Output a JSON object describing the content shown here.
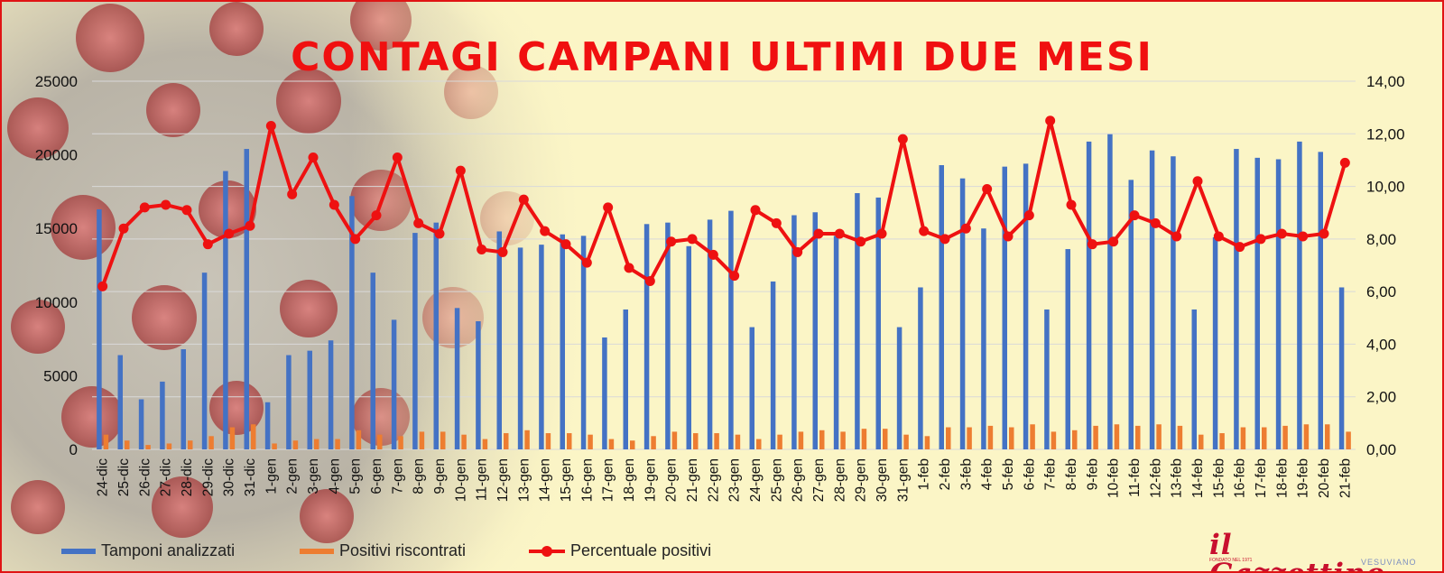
{
  "title": "CONTAGI CAMPANI ULTIMI DUE MESI",
  "legend": {
    "tamponi": "Tamponi analizzati",
    "positivi": "Positivi riscontrati",
    "percentuale": "Percentuale positivi"
  },
  "colors": {
    "tamponi": "#4472c4",
    "positivi": "#ed7d31",
    "percentuale": "#ee1111",
    "title": "#f01010"
  },
  "logo": {
    "name": "il Gazzettino",
    "sub": "VESUVIANO",
    "tag": "FONDATO NEL 1971"
  },
  "chart_data": {
    "type": "bar",
    "categories": [
      "24-dic",
      "25-dic",
      "26-dic",
      "27-dic",
      "28-dic",
      "29-dic",
      "30-dic",
      "31-dic",
      "1-gen",
      "2-gen",
      "3-gen",
      "4-gen",
      "5-gen",
      "6-gen",
      "7-gen",
      "8-gen",
      "9-gen",
      "10-gen",
      "11-gen",
      "12-gen",
      "13-gen",
      "14-gen",
      "15-gen",
      "16-gen",
      "17-gen",
      "18-gen",
      "19-gen",
      "20-gen",
      "21-gen",
      "22-gen",
      "23-gen",
      "24-gen",
      "25-gen",
      "26-gen",
      "27-gen",
      "28-gen",
      "29-gen",
      "30-gen",
      "31-gen",
      "1-feb",
      "2-feb",
      "3-feb",
      "4-feb",
      "5-feb",
      "6-feb",
      "7-feb",
      "8-feb",
      "9-feb",
      "10-feb",
      "11-feb",
      "12-feb",
      "13-feb",
      "14-feb",
      "15-feb",
      "16-feb",
      "17-feb",
      "18-feb",
      "19-feb",
      "20-feb",
      "21-feb"
    ],
    "series": [
      {
        "name": "Tamponi analizzati",
        "type": "bar",
        "axis": "left",
        "values": [
          16300,
          6400,
          3400,
          4600,
          6800,
          12000,
          18900,
          20400,
          3200,
          6400,
          6700,
          7400,
          17200,
          12000,
          8800,
          14700,
          15400,
          9600,
          8700,
          14800,
          13700,
          13900,
          14600,
          14500,
          7600,
          9500,
          15300,
          15400,
          13800,
          15600,
          16200,
          8300,
          11400,
          15900,
          16100,
          14500,
          17400,
          17100,
          8300,
          11000,
          19300,
          18400,
          15000,
          19200,
          19400,
          9500,
          13600,
          20900,
          21400,
          18300,
          20300,
          19900,
          9500,
          14400,
          20400,
          19800,
          19700,
          20900,
          20200,
          11000
        ]
      },
      {
        "name": "Positivi riscontrati",
        "type": "bar",
        "axis": "left",
        "values": [
          1000,
          600,
          300,
          400,
          600,
          900,
          1500,
          1700,
          400,
          600,
          700,
          700,
          1300,
          1000,
          900,
          1200,
          1200,
          1000,
          700,
          1100,
          1300,
          1100,
          1100,
          1000,
          700,
          600,
          900,
          1200,
          1100,
          1100,
          1000,
          700,
          1000,
          1200,
          1300,
          1200,
          1400,
          1400,
          1000,
          900,
          1500,
          1500,
          1600,
          1500,
          1700,
          1200,
          1300,
          1600,
          1700,
          1600,
          1700,
          1600,
          1000,
          1100,
          1500,
          1500,
          1600,
          1700,
          1700,
          1200
        ]
      },
      {
        "name": "Percentuale positivi",
        "type": "line",
        "axis": "right",
        "values": [
          6.2,
          8.4,
          9.2,
          9.3,
          9.1,
          7.8,
          8.2,
          8.5,
          12.3,
          9.7,
          11.1,
          9.3,
          8.0,
          8.9,
          11.1,
          8.6,
          8.2,
          10.6,
          7.6,
          7.5,
          9.5,
          8.3,
          7.8,
          7.1,
          9.2,
          6.9,
          6.4,
          7.9,
          8.0,
          7.4,
          6.6,
          9.1,
          8.6,
          7.5,
          8.2,
          8.2,
          7.9,
          8.2,
          11.8,
          8.3,
          8.0,
          8.4,
          9.9,
          8.1,
          8.9,
          12.5,
          9.3,
          7.8,
          7.9,
          8.9,
          8.6,
          8.1,
          10.2,
          8.1,
          7.7,
          8.0,
          8.2,
          8.1,
          8.2,
          10.9
        ]
      }
    ],
    "y_left": {
      "min": 0,
      "max": 25000,
      "ticks": [
        "0",
        "5000",
        "10000",
        "15000",
        "20000",
        "25000"
      ]
    },
    "y_right": {
      "min": 0,
      "max": 14,
      "ticks": [
        "0,00",
        "2,00",
        "4,00",
        "6,00",
        "8,00",
        "10,00",
        "12,00",
        "14,00"
      ]
    },
    "grid": true,
    "legend_position": "bottom"
  }
}
